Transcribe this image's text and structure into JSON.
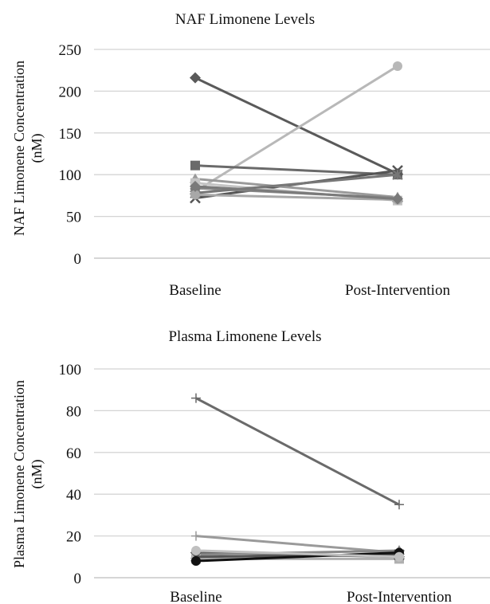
{
  "chart_data": [
    {
      "type": "line",
      "title": "NAF Limonene Levels",
      "ylabel": [
        "NAF Limonene Concentration",
        "(nM)"
      ],
      "xlabel": "",
      "categories": [
        "Baseline",
        "Post-Intervention"
      ],
      "ylim": [
        0,
        250
      ],
      "yticks": [
        0,
        50,
        100,
        150,
        200,
        250
      ],
      "grid": true,
      "legend": "none",
      "series": [
        {
          "values": [
            216,
            101
          ],
          "color": "#5a5a5a",
          "marker": "diamond"
        },
        {
          "values": [
            80,
            230
          ],
          "color": "#b8b8b8",
          "marker": "circle"
        },
        {
          "values": [
            111,
            100
          ],
          "color": "#6a6a6a",
          "marker": "square"
        },
        {
          "values": [
            72,
            105
          ],
          "color": "#555555",
          "marker": "x"
        },
        {
          "values": [
            95,
            73
          ],
          "color": "#9a9a9a",
          "marker": "triangle"
        },
        {
          "values": [
            90,
            69
          ],
          "color": "#c4c4c4",
          "marker": "square"
        },
        {
          "values": [
            84,
            72
          ],
          "color": "#888888",
          "marker": "triangle"
        },
        {
          "values": [
            78,
            100
          ],
          "color": "#777777",
          "marker": "star"
        },
        {
          "values": [
            76,
            70
          ],
          "color": "#a8a8a8",
          "marker": "circle"
        },
        {
          "values": [
            86,
            71
          ],
          "color": "#7a7a7a",
          "marker": "diamond"
        }
      ]
    },
    {
      "type": "line",
      "title": "Plasma Limonene Levels",
      "ylabel": [
        "Plasma Limonene Concentration",
        "(nM)"
      ],
      "xlabel": "",
      "categories": [
        "Baseline",
        "Post-Intervention"
      ],
      "ylim": [
        0,
        100
      ],
      "yticks": [
        0,
        20,
        40,
        60,
        80,
        100
      ],
      "grid": true,
      "legend": "none",
      "series": [
        {
          "values": [
            86,
            35
          ],
          "color": "#6a6a6a",
          "marker": "plus"
        },
        {
          "values": [
            20,
            12
          ],
          "color": "#9a9a9a",
          "marker": "plus"
        },
        {
          "values": [
            12,
            10
          ],
          "color": "#666666",
          "marker": "diamond"
        },
        {
          "values": [
            11,
            13
          ],
          "color": "#888888",
          "marker": "triangle"
        },
        {
          "values": [
            9,
            9
          ],
          "color": "#b0b0b0",
          "marker": "square"
        },
        {
          "values": [
            10,
            11
          ],
          "color": "#555555",
          "marker": "x"
        },
        {
          "values": [
            8,
            12
          ],
          "color": "#111111",
          "marker": "circle"
        },
        {
          "values": [
            13,
            10
          ],
          "color": "#c0c0c0",
          "marker": "circle"
        }
      ]
    }
  ]
}
